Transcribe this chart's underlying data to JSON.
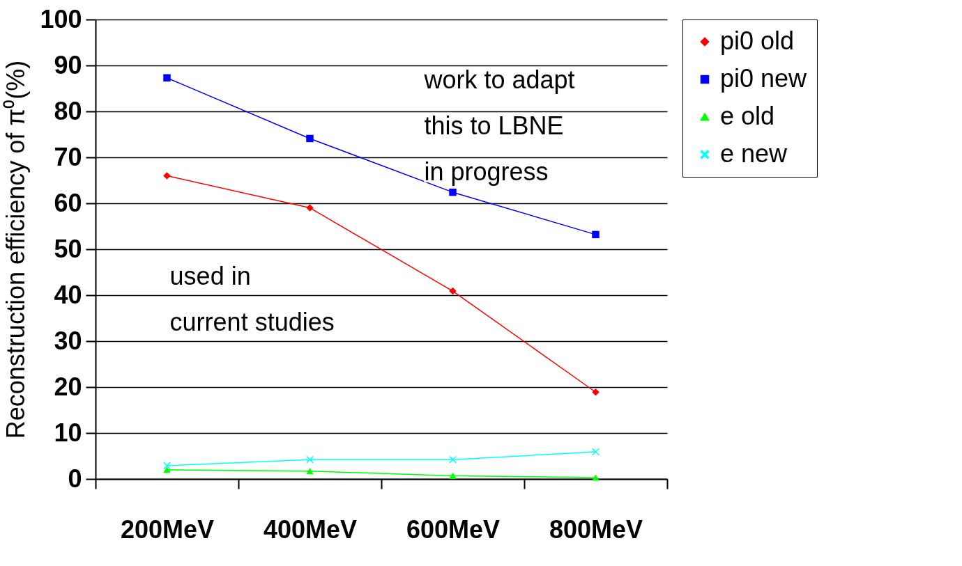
{
  "chart_data": {
    "type": "line",
    "ylabel": "Reconstruction efficiency of π⁰(%)",
    "categories": [
      "200MeV",
      "400MeV",
      "600MeV",
      "800MeV"
    ],
    "series": [
      {
        "name": "pi0 old",
        "color": "#ff0000",
        "marker": "diamond",
        "values": [
          66.0,
          59.0,
          40.9,
          18.9
        ]
      },
      {
        "name": "pi0 new",
        "color": "#0000ff",
        "marker": "square",
        "values": [
          87.3,
          74.1,
          62.4,
          53.2
        ]
      },
      {
        "name": "e old",
        "color": "#00ff00",
        "marker": "triangle",
        "values": [
          2.0,
          1.7,
          0.7,
          0.3
        ]
      },
      {
        "name": "e new",
        "color": "#00ffff",
        "marker": "cross",
        "values": [
          2.9,
          4.2,
          4.2,
          5.9
        ]
      }
    ],
    "ylim": [
      0,
      100
    ],
    "yticks": [
      0,
      10,
      20,
      30,
      40,
      50,
      60,
      70,
      80,
      90,
      100
    ],
    "grid": "y",
    "legend": "right",
    "annotations": [
      "work to adapt\nthis to LBNE\nin progress",
      "used in\ncurrent studies"
    ]
  }
}
